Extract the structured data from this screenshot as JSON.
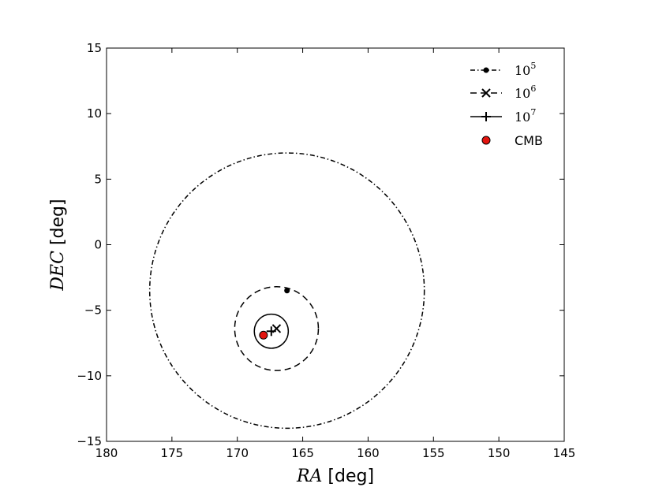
{
  "chart_data": {
    "type": "scatter",
    "title": "",
    "xlabel": {
      "math": "RA",
      "unit": "[deg]"
    },
    "ylabel": {
      "math": "DEC",
      "unit": "[deg]"
    },
    "xlim": [
      180,
      145
    ],
    "ylim": [
      -15,
      15
    ],
    "x_ticks": [
      180,
      175,
      170,
      165,
      160,
      155,
      150,
      145
    ],
    "y_ticks": [
      -15,
      -10,
      -5,
      0,
      5,
      10,
      15
    ],
    "x_tick_labels": [
      "180",
      "175",
      "170",
      "165",
      "160",
      "155",
      "150",
      "145"
    ],
    "y_tick_labels": [
      "−15",
      "−10",
      "−5",
      "0",
      "5",
      "10",
      "15"
    ],
    "grid": false,
    "legend_position": "top-right",
    "series": [
      {
        "name": "10^5",
        "name_base": "10",
        "name_exp": "5",
        "marker": "dot",
        "line_style": "dashdot",
        "color": "#000000",
        "center": {
          "x": 166.2,
          "y": -3.5
        },
        "circle": {
          "x_center": 166.2,
          "y_center": -3.5,
          "radius": 10.5
        }
      },
      {
        "name": "10^6",
        "name_base": "10",
        "name_exp": "6",
        "marker": "x",
        "line_style": "dashed",
        "color": "#000000",
        "center": {
          "x": 167.0,
          "y": -6.4
        },
        "circle": {
          "x_center": 167.0,
          "y_center": -6.4,
          "radius": 3.2
        }
      },
      {
        "name": "10^7",
        "name_base": "10",
        "name_exp": "7",
        "marker": "plus",
        "line_style": "solid",
        "color": "#000000",
        "center": {
          "x": 167.4,
          "y": -6.6
        },
        "circle": {
          "x_center": 167.4,
          "y_center": -6.6,
          "radius": 1.3
        }
      },
      {
        "name": "CMB",
        "marker": "filled-circle",
        "line_style": "none",
        "color": "#e3140f",
        "center": {
          "x": 168.0,
          "y": -6.9
        }
      }
    ]
  }
}
